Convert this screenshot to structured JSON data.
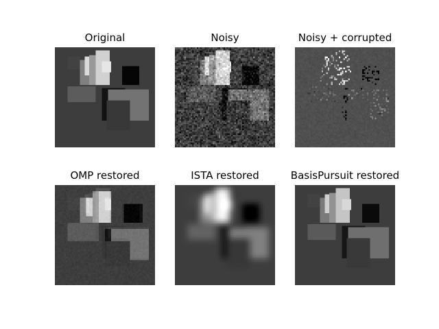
{
  "chart_data": [
    {
      "type": "heatmap",
      "title": "Original",
      "colormap": "gray",
      "grid": false,
      "axes": "hidden",
      "generator": "original"
    },
    {
      "type": "heatmap",
      "title": "Noisy",
      "colormap": "gray",
      "grid": false,
      "axes": "hidden",
      "generator": "noisy"
    },
    {
      "type": "heatmap",
      "title": "Noisy + corrupted",
      "colormap": "gray",
      "grid": false,
      "axes": "hidden",
      "generator": "corrupted"
    },
    {
      "type": "heatmap",
      "title": "OMP restored",
      "colormap": "gray",
      "grid": false,
      "axes": "hidden",
      "generator": "omp"
    },
    {
      "type": "heatmap",
      "title": "ISTA restored",
      "colormap": "gray",
      "grid": false,
      "axes": "hidden",
      "generator": "ista"
    },
    {
      "type": "heatmap",
      "title": "BasisPursuit restored",
      "colormap": "gray",
      "grid": false,
      "axes": "hidden",
      "generator": "basis"
    }
  ]
}
